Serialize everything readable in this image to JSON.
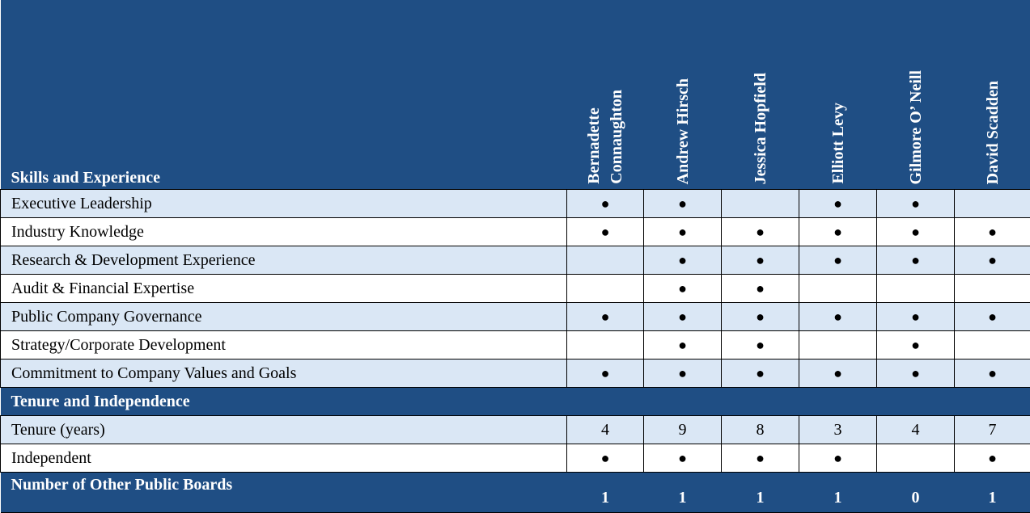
{
  "colors": {
    "header": "#1f4e84",
    "row_light": "#dae7f5",
    "row_white": "#ffffff"
  },
  "header": {
    "title": "Skills and Experience",
    "directors": [
      "Bernadette\nConnaughton",
      "Andrew Hirsch",
      "Jessica Hopfield",
      "Elliott Levy",
      "Gilmore O’  Neill",
      "David Scadden"
    ]
  },
  "skills": [
    {
      "label": "Executive Leadership",
      "values": [
        "●",
        "●",
        "",
        "●",
        "●",
        ""
      ]
    },
    {
      "label": "Industry Knowledge",
      "values": [
        "●",
        "●",
        "●",
        "●",
        "●",
        "●"
      ]
    },
    {
      "label": "Research & Development Experience",
      "values": [
        "",
        "●",
        "●",
        "●",
        "●",
        "●"
      ]
    },
    {
      "label": "Audit & Financial Expertise",
      "values": [
        "",
        "●",
        "●",
        "",
        "",
        ""
      ]
    },
    {
      "label": "Public Company Governance",
      "values": [
        "●",
        "●",
        "●",
        "●",
        "●",
        "●"
      ]
    },
    {
      "label": "Strategy/Corporate Development",
      "values": [
        "",
        "●",
        "●",
        "",
        "●",
        ""
      ]
    },
    {
      "label": "Commitment to Company Values and Goals",
      "values": [
        "●",
        "●",
        "●",
        "●",
        "●",
        "●"
      ]
    }
  ],
  "tenure_section": {
    "title": "Tenure and Independence"
  },
  "tenure": [
    {
      "label": "Tenure (years)",
      "values": [
        "4",
        "9",
        "8",
        "3",
        "4",
        "7"
      ]
    },
    {
      "label": "Independent",
      "values": [
        "●",
        "●",
        "●",
        "●",
        "",
        "●"
      ]
    }
  ],
  "boards": {
    "label": "Number of Other Public Boards",
    "values": [
      "1",
      "1",
      "1",
      "1",
      "0",
      "1"
    ]
  }
}
